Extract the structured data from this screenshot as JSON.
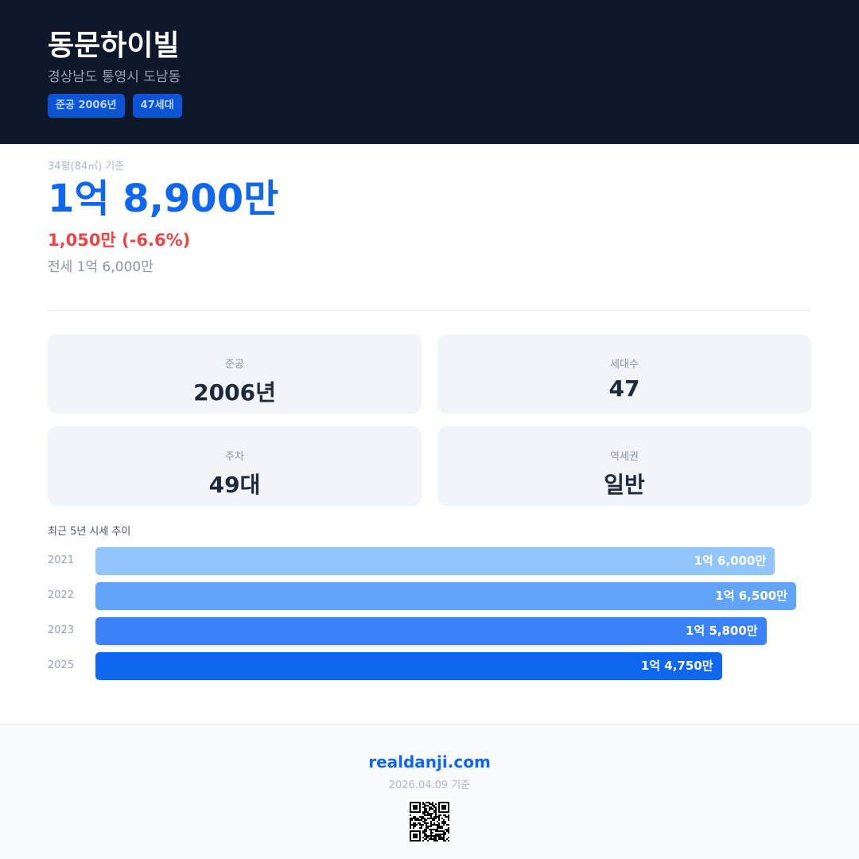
{
  "header": {
    "title": "동문하이빌",
    "address": "경상남도 통영시 도남동",
    "badges": [
      "준공 2006년",
      "47세대"
    ]
  },
  "price": {
    "basis": "34평(84㎡) 기준",
    "main": "1억 8,900만",
    "change": "1,050만 (-6.6%)",
    "jeonse": "전세 1억 6,000만"
  },
  "cards": [
    {
      "label": "준공",
      "value": "2006년"
    },
    {
      "label": "세대수",
      "value": "47"
    },
    {
      "label": "주차",
      "value": "49대"
    },
    {
      "label": "역세권",
      "value": "일반"
    }
  ],
  "trend": {
    "title": "최근 5년 시세 추이",
    "rows": [
      {
        "year": "2021",
        "label": "1억 6,000만",
        "value": 16000,
        "color": "#93c5fd"
      },
      {
        "year": "2022",
        "label": "1억 6,500만",
        "value": 16500,
        "color": "#60a5fa"
      },
      {
        "year": "2023",
        "label": "1억 5,800만",
        "value": 15800,
        "color": "#3b82f6"
      },
      {
        "year": "2025",
        "label": "1억 4,750만",
        "value": 14750,
        "color": "#0f66ef"
      }
    ]
  },
  "chart_data": {
    "type": "bar",
    "categories": [
      "2021",
      "2022",
      "2023",
      "2025"
    ],
    "values": [
      16000,
      16500,
      15800,
      14750
    ],
    "title": "최근 5년 시세 추이"
  },
  "footer": {
    "site": "realdanji.com",
    "date": "2026.04.09 기준"
  }
}
